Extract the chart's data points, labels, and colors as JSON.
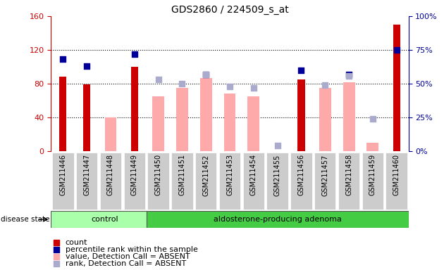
{
  "title": "GDS2860 / 224509_s_at",
  "samples": [
    "GSM211446",
    "GSM211447",
    "GSM211448",
    "GSM211449",
    "GSM211450",
    "GSM211451",
    "GSM211452",
    "GSM211453",
    "GSM211454",
    "GSM211455",
    "GSM211456",
    "GSM211457",
    "GSM211458",
    "GSM211459",
    "GSM211460"
  ],
  "count_values": [
    88,
    79,
    null,
    100,
    null,
    null,
    null,
    null,
    null,
    null,
    85,
    null,
    null,
    null,
    150
  ],
  "percentile_values": [
    68,
    63,
    null,
    72,
    null,
    null,
    57,
    null,
    null,
    null,
    60,
    null,
    57,
    null,
    75
  ],
  "absent_value_bars": [
    null,
    null,
    40,
    null,
    65,
    75,
    87,
    68,
    65,
    null,
    null,
    75,
    82,
    10,
    null
  ],
  "absent_rank_squares": [
    null,
    null,
    null,
    null,
    53,
    50,
    57,
    48,
    47,
    4,
    null,
    49,
    56,
    24,
    null
  ],
  "control_count": 4,
  "adenoma_count": 11,
  "left_ylim": [
    0,
    160
  ],
  "right_ylim": [
    0,
    100
  ],
  "left_yticks": [
    0,
    40,
    80,
    120,
    160
  ],
  "right_yticks": [
    0,
    25,
    50,
    75,
    100
  ],
  "right_yticklabels": [
    "0%",
    "25%",
    "50%",
    "75%",
    "100%"
  ],
  "dotted_lines": [
    40,
    80,
    120
  ],
  "bar_color_count": "#cc0000",
  "bar_color_absent_val": "#ffaaaa",
  "square_color_percentile": "#000099",
  "square_color_absent_rank": "#aaaacc",
  "control_bg": "#aaffaa",
  "adenoma_bg": "#44cc44",
  "xticklabel_bg": "#cccccc",
  "plot_bg": "#ffffff",
  "disease_state_label": "disease state",
  "control_label": "control",
  "adenoma_label": "aldosterone-producing adenoma",
  "legend_count": "count",
  "legend_percentile": "percentile rank within the sample",
  "legend_absent_val": "value, Detection Call = ABSENT",
  "legend_absent_rank": "rank, Detection Call = ABSENT"
}
